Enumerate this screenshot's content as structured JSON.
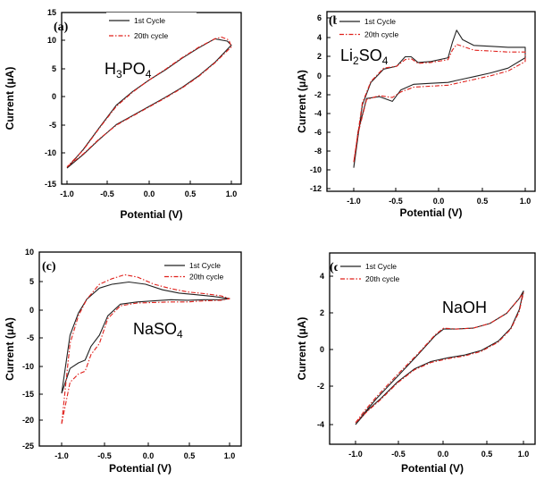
{
  "colors": {
    "cycle1": "#222222",
    "cycle20": "#e0201b"
  },
  "chart_data": [
    {
      "type": "line",
      "panel_label": "(a)",
      "electrolyte": {
        "base": "H",
        "sub1": "3",
        "mid": "PO",
        "sub2": "4"
      },
      "xlabel": "Potential (V)",
      "ylabel": "Current (μA)",
      "xlim": [
        -1.2,
        1.2
      ],
      "ylim": [
        -15,
        15
      ],
      "xticks": [
        "-1.0",
        "-0.5",
        "0.0",
        "0.5",
        "1.0"
      ],
      "yticks": [
        "-15",
        "-10",
        "-5",
        "0",
        "5",
        "10",
        "15"
      ],
      "legend": [
        "1st Cycle",
        "20th cycle"
      ],
      "series": [
        {
          "name": "1st Cycle",
          "color": "#222222",
          "dash": "solid",
          "points": [
            [
              -1.0,
              -12.2
            ],
            [
              -0.8,
              -9.8
            ],
            [
              -0.6,
              -7.1
            ],
            [
              -0.4,
              -4.6
            ],
            [
              -0.2,
              -3.0
            ],
            [
              0.0,
              -1.4
            ],
            [
              0.2,
              0.2
            ],
            [
              0.4,
              1.9
            ],
            [
              0.6,
              3.9
            ],
            [
              0.8,
              6.3
            ],
            [
              1.0,
              9.3
            ],
            [
              0.95,
              10.0
            ],
            [
              0.8,
              10.4
            ],
            [
              0.6,
              8.8
            ],
            [
              0.4,
              7.0
            ],
            [
              0.2,
              5.0
            ],
            [
              0.0,
              3.2
            ],
            [
              -0.2,
              1.2
            ],
            [
              -0.4,
              -1.2
            ],
            [
              -0.6,
              -5.0
            ],
            [
              -0.8,
              -8.9
            ],
            [
              -1.0,
              -12.2
            ]
          ]
        },
        {
          "name": "20th cycle",
          "color": "#e0201b",
          "dash": "dashdot",
          "points": [
            [
              -1.0,
              -12.0
            ],
            [
              -0.8,
              -9.7
            ],
            [
              -0.6,
              -7.0
            ],
            [
              -0.4,
              -4.7
            ],
            [
              -0.2,
              -3.1
            ],
            [
              0.0,
              -1.5
            ],
            [
              0.2,
              0.1
            ],
            [
              0.4,
              1.8
            ],
            [
              0.6,
              3.8
            ],
            [
              0.8,
              6.2
            ],
            [
              1.0,
              9.0
            ],
            [
              0.97,
              10.2
            ],
            [
              0.88,
              10.7
            ],
            [
              0.8,
              10.4
            ],
            [
              0.6,
              8.9
            ],
            [
              0.4,
              7.1
            ],
            [
              0.2,
              5.1
            ],
            [
              0.0,
              3.2
            ],
            [
              -0.2,
              1.1
            ],
            [
              -0.4,
              -1.4
            ],
            [
              -0.6,
              -5.1
            ],
            [
              -0.8,
              -9.0
            ],
            [
              -1.0,
              -12.0
            ]
          ]
        }
      ]
    },
    {
      "type": "line",
      "panel_label": "(b)",
      "electrolyte": {
        "base": "Li",
        "sub1": "2",
        "mid": "SO",
        "sub2": "4"
      },
      "xlabel": "Potential (V)",
      "ylabel": "Current (μA)",
      "xlim": [
        -1.2,
        1.2
      ],
      "ylim": [
        -12,
        7
      ],
      "xticks": [
        "-1.0",
        "-0.5",
        "0.0",
        "0.5",
        "1.0"
      ],
      "yticks": [
        "-12",
        "-10",
        "-8",
        "-6",
        "-4",
        "-2",
        "0",
        "2",
        "4",
        "6"
      ],
      "legend": [
        "1st Cycle",
        "20th cycle"
      ],
      "series": [
        {
          "name": "1st Cycle",
          "color": "#222222",
          "dash": "solid",
          "points": [
            [
              -1.0,
              -9.8
            ],
            [
              -0.9,
              -3.2
            ],
            [
              -0.8,
              -0.8
            ],
            [
              -0.65,
              0.6
            ],
            [
              -0.5,
              0.9
            ],
            [
              -0.4,
              1.9
            ],
            [
              -0.33,
              1.9
            ],
            [
              -0.25,
              1.3
            ],
            [
              -0.1,
              1.4
            ],
            [
              0.1,
              1.8
            ],
            [
              0.15,
              3.4
            ],
            [
              0.2,
              4.7
            ],
            [
              0.27,
              3.7
            ],
            [
              0.4,
              3.1
            ],
            [
              0.6,
              3.0
            ],
            [
              0.8,
              2.9
            ],
            [
              1.0,
              2.9
            ],
            [
              1.0,
              1.8
            ],
            [
              0.8,
              0.7
            ],
            [
              0.6,
              0.2
            ],
            [
              0.4,
              -0.2
            ],
            [
              0.3,
              -0.4
            ],
            [
              0.2,
              -0.6
            ],
            [
              0.1,
              -0.8
            ],
            [
              -0.1,
              -0.9
            ],
            [
              -0.3,
              -1.0
            ],
            [
              -0.45,
              -1.6
            ],
            [
              -0.55,
              -2.8
            ],
            [
              -0.7,
              -2.3
            ],
            [
              -0.85,
              -2.5
            ],
            [
              -0.95,
              -6.0
            ],
            [
              -1.0,
              -9.8
            ]
          ]
        },
        {
          "name": "20th cycle",
          "color": "#e0201b",
          "dash": "dashdot",
          "points": [
            [
              -1.0,
              -9.2
            ],
            [
              -0.9,
              -3.0
            ],
            [
              -0.8,
              -0.7
            ],
            [
              -0.65,
              0.7
            ],
            [
              -0.5,
              0.9
            ],
            [
              -0.4,
              1.6
            ],
            [
              -0.33,
              1.7
            ],
            [
              -0.25,
              1.2
            ],
            [
              -0.1,
              1.3
            ],
            [
              0.1,
              1.6
            ],
            [
              0.15,
              2.6
            ],
            [
              0.2,
              3.2
            ],
            [
              0.27,
              3.0
            ],
            [
              0.4,
              2.6
            ],
            [
              0.6,
              2.5
            ],
            [
              0.8,
              2.4
            ],
            [
              1.0,
              2.4
            ],
            [
              1.0,
              1.4
            ],
            [
              0.8,
              0.4
            ],
            [
              0.6,
              -0.1
            ],
            [
              0.4,
              -0.5
            ],
            [
              0.3,
              -0.7
            ],
            [
              0.2,
              -0.9
            ],
            [
              0.1,
              -1.1
            ],
            [
              -0.1,
              -1.2
            ],
            [
              -0.3,
              -1.3
            ],
            [
              -0.45,
              -1.8
            ],
            [
              -0.55,
              -2.4
            ],
            [
              -0.7,
              -2.2
            ],
            [
              -0.85,
              -2.6
            ],
            [
              -0.95,
              -6.2
            ],
            [
              -1.0,
              -9.2
            ]
          ]
        }
      ]
    },
    {
      "type": "line",
      "panel_label": "(c)",
      "electrolyte": {
        "base": "NaSO",
        "sub1": "4",
        "mid": "",
        "sub2": ""
      },
      "xlabel": "Potential (V)",
      "ylabel": "Current (μA)",
      "xlim": [
        -1.2,
        1.2
      ],
      "ylim": [
        -25,
        10
      ],
      "xticks": [
        "-1.0",
        "-0.5",
        "0.0",
        "0.5",
        "1.0"
      ],
      "yticks": [
        "-25",
        "-20",
        "-15",
        "-10",
        "-5",
        "0",
        "5",
        "10"
      ],
      "legend": [
        "1st Cycle",
        "20th cycle"
      ],
      "series": [
        {
          "name": "1st Cycle",
          "color": "#222222",
          "dash": "solid",
          "points": [
            [
              -1.0,
              -15.5
            ],
            [
              -0.9,
              -5.0
            ],
            [
              -0.8,
              -1.0
            ],
            [
              -0.7,
              1.5
            ],
            [
              -0.55,
              3.5
            ],
            [
              -0.4,
              4.2
            ],
            [
              -0.2,
              4.6
            ],
            [
              0.0,
              4.2
            ],
            [
              0.2,
              3.2
            ],
            [
              0.4,
              2.6
            ],
            [
              0.6,
              2.3
            ],
            [
              0.8,
              2.0
            ],
            [
              1.0,
              1.6
            ],
            [
              0.9,
              1.4
            ],
            [
              0.7,
              1.4
            ],
            [
              0.5,
              1.3
            ],
            [
              0.3,
              1.4
            ],
            [
              0.1,
              1.2
            ],
            [
              -0.1,
              1.0
            ],
            [
              -0.3,
              0.6
            ],
            [
              -0.45,
              -1.5
            ],
            [
              -0.55,
              -5.0
            ],
            [
              -0.65,
              -7.0
            ],
            [
              -0.72,
              -9.5
            ],
            [
              -0.8,
              -10.0
            ],
            [
              -0.9,
              -11.0
            ],
            [
              -1.0,
              -15.5
            ]
          ]
        },
        {
          "name": "20th cycle",
          "color": "#e0201b",
          "dash": "dashdot",
          "points": [
            [
              -1.0,
              -21.0
            ],
            [
              -0.9,
              -6.5
            ],
            [
              -0.8,
              -1.5
            ],
            [
              -0.7,
              1.5
            ],
            [
              -0.55,
              4.2
            ],
            [
              -0.4,
              5.2
            ],
            [
              -0.25,
              5.9
            ],
            [
              -0.1,
              5.5
            ],
            [
              0.1,
              4.2
            ],
            [
              0.3,
              3.4
            ],
            [
              0.5,
              2.8
            ],
            [
              0.7,
              2.5
            ],
            [
              0.9,
              2.1
            ],
            [
              1.0,
              1.6
            ],
            [
              0.9,
              1.3
            ],
            [
              0.7,
              1.2
            ],
            [
              0.5,
              1.0
            ],
            [
              0.3,
              1.0
            ],
            [
              0.1,
              0.9
            ],
            [
              -0.1,
              0.8
            ],
            [
              -0.3,
              0.3
            ],
            [
              -0.45,
              -2.0
            ],
            [
              -0.55,
              -6.5
            ],
            [
              -0.65,
              -8.5
            ],
            [
              -0.72,
              -11.5
            ],
            [
              -0.8,
              -12.0
            ],
            [
              -0.9,
              -13.5
            ],
            [
              -1.0,
              -21.0
            ]
          ]
        }
      ]
    },
    {
      "type": "line",
      "panel_label": "(d)",
      "electrolyte": {
        "base": "NaOH",
        "sub1": "",
        "mid": "",
        "sub2": ""
      },
      "xlabel": "Potential (V)",
      "ylabel": "Current (μA)",
      "xlim": [
        -1.2,
        1.2
      ],
      "ylim": [
        -5,
        5
      ],
      "xticks": [
        "-1.0",
        "-0.5",
        "0.0",
        "0.5",
        "1.0"
      ],
      "yticks": [
        "-4",
        "-2",
        "0",
        "2",
        "4"
      ],
      "legend": [
        "1st Cycle",
        "20th cycle"
      ],
      "series": [
        {
          "name": "1st Cycle",
          "color": "#222222",
          "dash": "solid",
          "points": [
            [
              -1.0,
              -4.0
            ],
            [
              -0.9,
              -3.4
            ],
            [
              -0.75,
              -2.6
            ],
            [
              -0.5,
              -1.4
            ],
            [
              -0.25,
              -0.2
            ],
            [
              -0.05,
              0.8
            ],
            [
              0.05,
              1.15
            ],
            [
              0.2,
              1.15
            ],
            [
              0.4,
              1.2
            ],
            [
              0.6,
              1.45
            ],
            [
              0.8,
              2.0
            ],
            [
              0.95,
              2.8
            ],
            [
              1.0,
              3.2
            ],
            [
              0.95,
              2.2
            ],
            [
              0.85,
              1.2
            ],
            [
              0.7,
              0.5
            ],
            [
              0.5,
              0.0
            ],
            [
              0.3,
              -0.25
            ],
            [
              0.1,
              -0.4
            ],
            [
              -0.1,
              -0.6
            ],
            [
              -0.3,
              -1.0
            ],
            [
              -0.5,
              -1.7
            ],
            [
              -0.7,
              -2.6
            ],
            [
              -0.85,
              -3.2
            ],
            [
              -1.0,
              -4.0
            ]
          ]
        },
        {
          "name": "20th cycle",
          "color": "#e0201b",
          "dash": "dashdot",
          "points": [
            [
              -1.0,
              -3.9
            ],
            [
              -0.9,
              -3.3
            ],
            [
              -0.75,
              -2.5
            ],
            [
              -0.5,
              -1.3
            ],
            [
              -0.25,
              -0.15
            ],
            [
              -0.05,
              0.85
            ],
            [
              0.05,
              1.2
            ],
            [
              0.2,
              1.15
            ],
            [
              0.4,
              1.2
            ],
            [
              0.6,
              1.45
            ],
            [
              0.8,
              2.0
            ],
            [
              0.95,
              2.8
            ],
            [
              1.0,
              3.1
            ],
            [
              0.95,
              2.1
            ],
            [
              0.85,
              1.15
            ],
            [
              0.7,
              0.45
            ],
            [
              0.5,
              -0.05
            ],
            [
              0.3,
              -0.3
            ],
            [
              0.1,
              -0.45
            ],
            [
              -0.1,
              -0.65
            ],
            [
              -0.3,
              -1.05
            ],
            [
              -0.5,
              -1.75
            ],
            [
              -0.7,
              -2.65
            ],
            [
              -0.85,
              -3.25
            ],
            [
              -1.0,
              -3.9
            ]
          ]
        }
      ]
    }
  ]
}
